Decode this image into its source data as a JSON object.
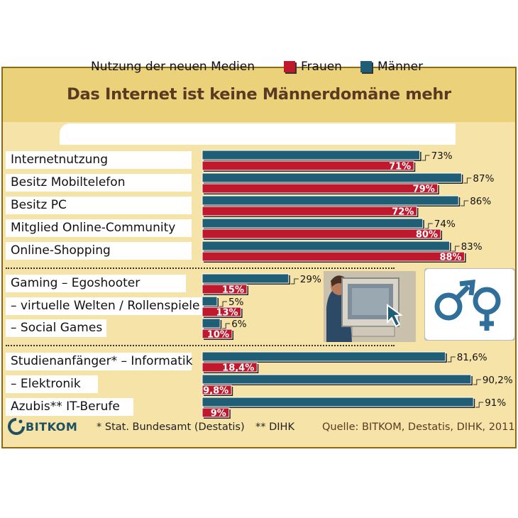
{
  "title": "Das Internet ist keine Männerdomäne mehr",
  "legend": {
    "heading": "Nutzung der neuen Medien",
    "female_label": "Frauen",
    "male_label": "Männer"
  },
  "colors": {
    "female": "#c0182c",
    "male": "#1f5e74",
    "background": "#f5e3a8",
    "title_band": "#ead17a",
    "title_text": "#5a3b22"
  },
  "chart_data": {
    "type": "bar",
    "orientation": "horizontal",
    "title": "Das Internet ist keine Männerdomäne mehr",
    "subtitle": "Nutzung der neuen Medien",
    "categories": [
      "Internetnutzung",
      "Besitz Mobiltelefon",
      "Besitz PC",
      "Mitglied Online-Community",
      "Online-Shopping",
      "Gaming – Egoshooter",
      "– virtuelle Welten / Rollenspiele",
      "– Social Games",
      "Studienanfänger* – Informatik",
      "– Elektronik",
      "Azubis** IT-Berufe"
    ],
    "groups": [
      {
        "name": "",
        "start": 0,
        "count": 5
      },
      {
        "name": "",
        "start": 5,
        "count": 3
      },
      {
        "name": "",
        "start": 8,
        "count": 3
      }
    ],
    "series": [
      {
        "name": "Männer",
        "color": "#1f5e74",
        "values": [
          73,
          87,
          86,
          74,
          83,
          29,
          5,
          6,
          81.6,
          90.2,
          91
        ],
        "labels": [
          "73%",
          "87%",
          "86%",
          "74%",
          "83%",
          "29%",
          "5%",
          "6%",
          "81,6%",
          "90,2%",
          "91%"
        ]
      },
      {
        "name": "Frauen",
        "color": "#c0182c",
        "values": [
          71,
          79,
          72,
          80,
          88,
          15,
          13,
          10,
          18.4,
          9.8,
          9
        ],
        "labels": [
          "71%",
          "79%",
          "72%",
          "80%",
          "88%",
          "15%",
          "13%",
          "10%",
          "18,4%",
          "9,8%",
          "9%"
        ]
      }
    ],
    "unit": "%",
    "xlim": [
      0,
      100
    ],
    "grid": false,
    "legend_position": "top"
  },
  "footer": {
    "logo": "BITKOM",
    "note1": "* Stat. Bundesamt (Destatis)",
    "note2": "** DIHK",
    "source": "Quelle: BITKOM, Destatis, DIHK, 2011"
  },
  "icons": {
    "monitor": "monitor-with-cursor-icon",
    "gender": "gender-symbols-icon",
    "logo": "bitkom-logo-icon"
  }
}
